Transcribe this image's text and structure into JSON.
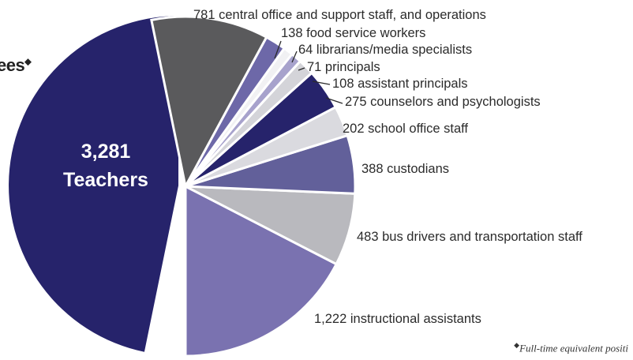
{
  "heading_fragment": "ees",
  "heading_mark": "◆",
  "footnote": {
    "mark": "◆",
    "text": "Full-time equivalent positi"
  },
  "colors": {
    "teachers": "#26236b",
    "teacher_text": "#ffffff",
    "label_text": "#2b2b2b"
  },
  "chart_data": {
    "type": "pie",
    "slices": [
      {
        "value": 3281,
        "count_label": "3,281",
        "label": "Teachers",
        "color": "#26236b"
      },
      {
        "value": 1222,
        "label": "1,222 instructional assistants",
        "color": "#7a72b0"
      },
      {
        "value": 483,
        "label": "483 bus drivers and transportation staff",
        "color": "#b9b9be"
      },
      {
        "value": 388,
        "label": "388 custodians",
        "color": "#62609a"
      },
      {
        "value": 202,
        "label": "202 school office staff",
        "color": "#dadadf"
      },
      {
        "value": 275,
        "label": "275 counselors and psychologists",
        "color": "#26236b"
      },
      {
        "value": 108,
        "label": "108 assistant principals",
        "color": "#d4d4d9"
      },
      {
        "value": 71,
        "label": "71 principals",
        "color": "#a7a2cc"
      },
      {
        "value": 64,
        "label": "64 librarians/media specialists",
        "color": "#f1f1f3"
      },
      {
        "value": 138,
        "label": "138 food service workers",
        "color": "#6d68a8"
      },
      {
        "value": 781,
        "label": "781 central office and support staff, and operations",
        "color": "#5a5a5c"
      }
    ]
  }
}
